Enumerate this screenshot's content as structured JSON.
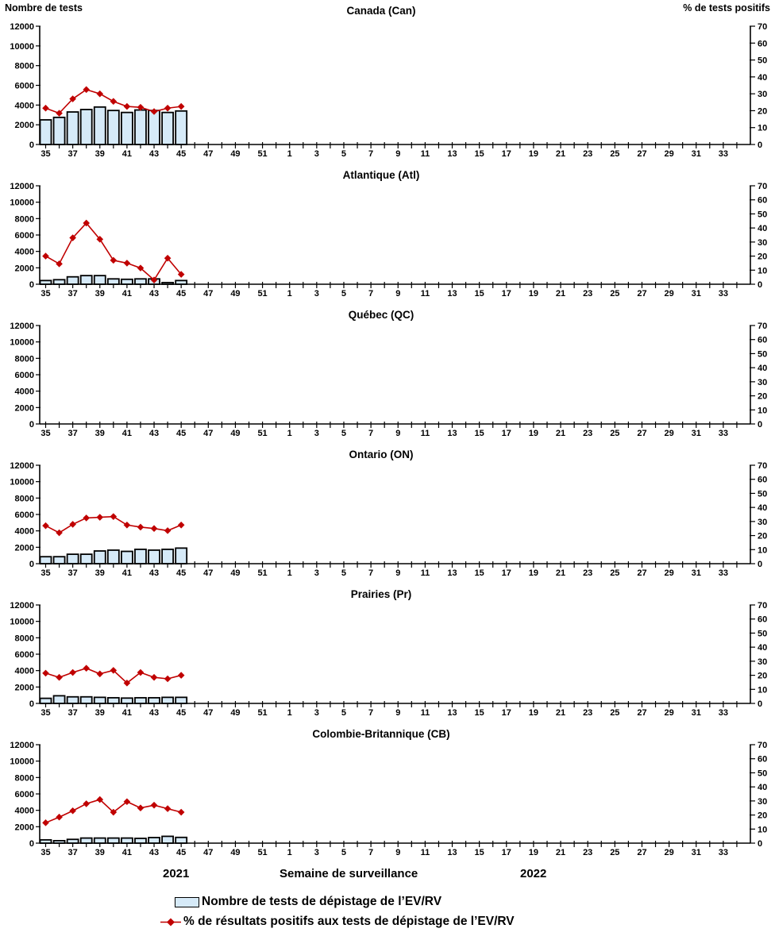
{
  "colors": {
    "bar_fill": "#D6EAF8",
    "bar_border": "#000000",
    "line": "#C00000",
    "text": "#000000"
  },
  "chart_data": {
    "type": "bar+line multi-panel",
    "x_axis": {
      "title": "Semaine de surveillance",
      "year_left": "2021",
      "year_right": "2022",
      "first_week": 35,
      "weeks_total": 52,
      "tick_labels": [
        "35",
        "37",
        "39",
        "41",
        "43",
        "45",
        "47",
        "49",
        "51",
        "1",
        "3",
        "5",
        "7",
        "9",
        "11",
        "13",
        "15",
        "17",
        "19",
        "21",
        "23",
        "25",
        "27",
        "29",
        "31",
        "33"
      ]
    },
    "left_axis": {
      "title": "Nombre de tests",
      "range": [
        0,
        12000
      ],
      "tick_step": 2000
    },
    "right_axis": {
      "title": "% de tests positifs",
      "range": [
        0,
        70
      ],
      "tick_step": 10
    },
    "legend": [
      {
        "series": "tests",
        "marker": "bar",
        "label": "Nombre de tests de dépistage de l’EV/RV"
      },
      {
        "series": "pct",
        "marker": "line-diamond",
        "label": "% de résultats positifs aux tests de dépistage de l’EV/RV"
      }
    ],
    "panels": [
      {
        "id": "canada",
        "title": "Canada (Can)",
        "weeks": [
          35,
          36,
          37,
          38,
          39,
          40,
          41,
          42,
          43,
          44,
          45
        ],
        "tests": [
          2500,
          2750,
          3300,
          3550,
          3800,
          3450,
          3250,
          3500,
          3450,
          3250,
          3400
        ],
        "pct_positive": [
          21.5,
          18.5,
          27,
          32.5,
          30,
          25.5,
          22.5,
          22,
          19.5,
          21.5,
          22.5
        ]
      },
      {
        "id": "atlantique",
        "title": "Atlantique (Atl)",
        "weeks": [
          35,
          36,
          37,
          38,
          39,
          40,
          41,
          42,
          43,
          44,
          45
        ],
        "tests": [
          450,
          550,
          900,
          1050,
          1050,
          650,
          600,
          650,
          650,
          200,
          450
        ],
        "pct_positive": [
          20,
          14.5,
          33,
          43.5,
          32,
          17,
          15,
          11.5,
          3,
          18.5,
          7
        ]
      },
      {
        "id": "quebec",
        "title": "Québec (QC)",
        "weeks": [],
        "tests": [],
        "pct_positive": []
      },
      {
        "id": "ontario",
        "title": "Ontario (ON)",
        "weeks": [
          35,
          36,
          37,
          38,
          39,
          40,
          41,
          42,
          43,
          44,
          45
        ],
        "tests": [
          850,
          850,
          1150,
          1150,
          1550,
          1650,
          1500,
          1750,
          1650,
          1750,
          1900
        ],
        "pct_positive": [
          27,
          22,
          28,
          32.5,
          33,
          33.5,
          27.5,
          26,
          25,
          23.5,
          27.5
        ]
      },
      {
        "id": "prairies",
        "title": "Prairies (Pr)",
        "weeks": [
          35,
          36,
          37,
          38,
          39,
          40,
          41,
          42,
          43,
          44,
          45
        ],
        "tests": [
          620,
          930,
          800,
          800,
          740,
          690,
          650,
          690,
          690,
          740,
          740
        ],
        "pct_positive": [
          21.5,
          18.5,
          22,
          25,
          21,
          23.5,
          14.5,
          22,
          18.5,
          17.5,
          20
        ]
      },
      {
        "id": "colombie-britannique",
        "title": "Colombie-Britannique (CB)",
        "weeks": [
          35,
          36,
          37,
          38,
          39,
          40,
          41,
          42,
          43,
          44,
          45
        ],
        "tests": [
          400,
          300,
          460,
          620,
          620,
          620,
          620,
          580,
          680,
          830,
          700
        ],
        "pct_positive": [
          14.5,
          18.5,
          23,
          28,
          31,
          22,
          29.5,
          25,
          27,
          24.5,
          22
        ]
      }
    ]
  }
}
